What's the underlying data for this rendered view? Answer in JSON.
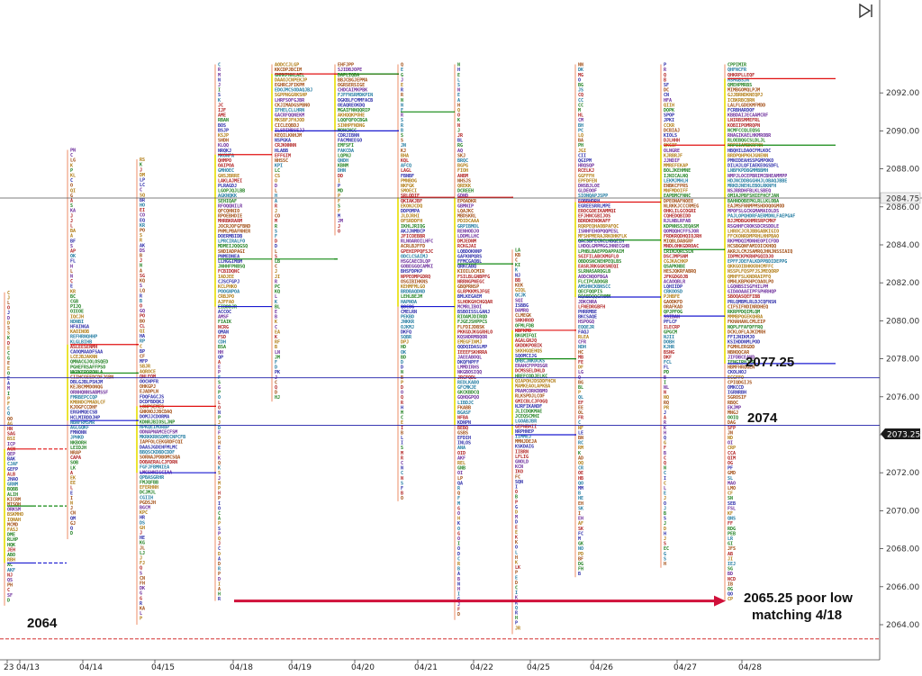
{
  "chart_data": {
    "type": "market-profile",
    "price_axis": {
      "min": 2062.5,
      "max": 2093.5,
      "ticks": [
        2064,
        2066,
        2068,
        2070,
        2072,
        2074,
        2076,
        2078,
        2080,
        2082,
        2084,
        2086,
        2088,
        2090,
        2092
      ],
      "tick_labels": [
        "2064.00",
        "2066.00",
        "2068.00",
        "2070.00",
        "2072.00",
        "2074.00",
        "2076.00",
        "2078.00",
        "2080.00",
        "2082.00",
        "2084.00",
        "2086.00",
        "2088.00",
        "2090.00",
        "2092.00"
      ]
    },
    "current_price": {
      "value": 2084.75,
      "label": "2084.75"
    },
    "last_price": {
      "value": 2073.25,
      "label": "2073.25"
    },
    "x_labels": [
      "23",
      "04/13",
      "04/14",
      "04/15",
      "04/18",
      "04/19",
      "04/20",
      "04/21",
      "04/22",
      "04/25",
      "04/26",
      "04/27",
      "04/28"
    ],
    "sessions": [
      {
        "date": "04/13",
        "low": 2065.0,
        "high": 2081.5,
        "vah": 2073.25,
        "poc": 2070.25,
        "val": 2067.25
      },
      {
        "date": "04/14",
        "low": 2068.5,
        "high": 2089.0,
        "vah": 2078.75,
        "poc": 2077.25,
        "val": 2074.75
      },
      {
        "date": "04/15",
        "low": 2064.0,
        "high": 2088.5,
        "vah": 2075.5,
        "poc": 2074.5,
        "val": 2072.0
      },
      {
        "date": "04/18",
        "low": 2065.25,
        "high": 2093.5,
        "vah": 2088.75,
        "poc": 2083.25,
        "val": 2080.75
      },
      {
        "date": "04/19",
        "low": 2075.75,
        "high": 2093.5,
        "vah": 2093.0,
        "poc": 2083.25,
        "val": 2090.0
      },
      {
        "date": "04/20",
        "low": 2084.5,
        "high": 2093.5,
        "vah": 2093.0,
        "poc": 2093.0,
        "val": 2090.0
      },
      {
        "date": "04/21",
        "low": 2070.5,
        "high": 2093.5,
        "vah": 2086.5,
        "poc": 2091.0,
        "val": 2080.75
      },
      {
        "date": "04/22",
        "low": 2064.25,
        "high": 2093.5,
        "vah": 2086.5,
        "poc": 2083.0,
        "val": 2074.5
      },
      {
        "date": "04/25",
        "low": 2063.5,
        "high": 2083.75,
        "vah": 2079.5,
        "poc": 2078.0,
        "val": 2074.0
      },
      {
        "date": "04/26",
        "low": 2066.5,
        "high": 2093.5,
        "vah": 2086.25,
        "poc": 2084.25,
        "val": 2081.25
      },
      {
        "date": "04/27",
        "low": 2067.0,
        "high": 2093.5,
        "vah": 2089.25,
        "poc": 2083.75,
        "val": 2080.25
      },
      {
        "date": "04/28",
        "low": 2065.25,
        "high": 2093.5,
        "vah": 2092.75,
        "poc": 2089.25,
        "val": 2077.75
      }
    ],
    "annotations": [
      {
        "text": "2064"
      },
      {
        "text": "2077.25"
      },
      {
        "text": "2074"
      },
      {
        "text": "2065.25 poor low"
      },
      {
        "text": "matching 4/18"
      }
    ],
    "reference_levels": [
      {
        "value": 2077.0,
        "color": "#1d1da8",
        "style": "solid"
      },
      {
        "value": 2074.5,
        "color": "#1d1da8",
        "style": "solid"
      },
      {
        "value": 2063.25,
        "color": "#cc1111",
        "style": "dashed"
      }
    ],
    "arrow": {
      "from_date": "04/18",
      "to_date": "04/28",
      "price": 2065.25,
      "color": "#d0103a"
    }
  },
  "colors": {
    "vah": "#e01010",
    "poc": "#118811",
    "val": "#1a1ad0",
    "open": "#e8e800",
    "close": "#90e090",
    "range": "#f4b49a",
    "grid": "#666666",
    "arrow": "#d0103a"
  },
  "icons": {
    "play": "play-icon"
  }
}
